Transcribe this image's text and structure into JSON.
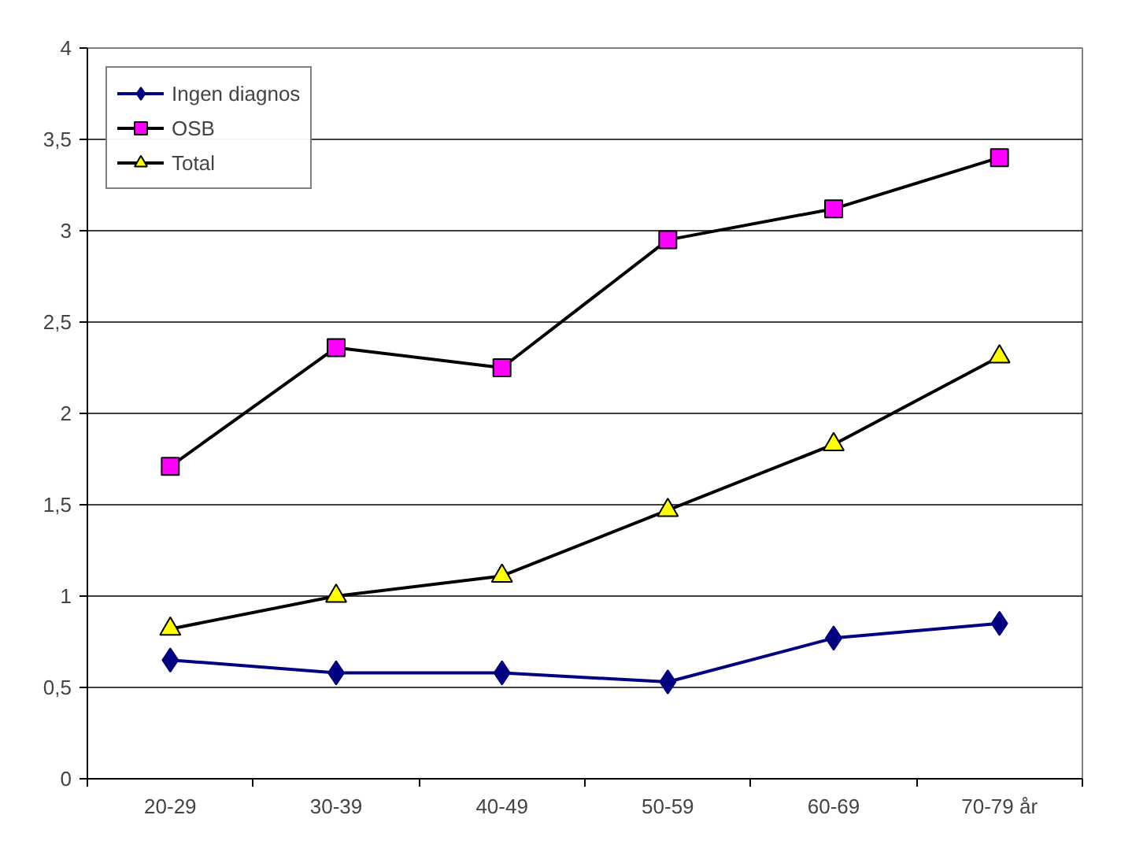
{
  "chart_data": {
    "type": "line",
    "categories": [
      "20-29",
      "30-39",
      "40-49",
      "50-59",
      "60-69",
      "70-79 år"
    ],
    "series": [
      {
        "name": "Ingen diagnos",
        "color": "#000080",
        "marker": "diamond",
        "values": [
          0.65,
          0.58,
          0.58,
          0.53,
          0.77,
          0.85
        ]
      },
      {
        "name": "OSB",
        "color": "#ff00ff",
        "marker": "square",
        "values": [
          1.71,
          2.36,
          2.25,
          2.95,
          3.12,
          3.4
        ]
      },
      {
        "name": "Total",
        "color": "#ffff00",
        "marker": "triangle",
        "values": [
          0.82,
          1.0,
          1.11,
          1.47,
          1.83,
          2.31
        ]
      }
    ],
    "ylim": [
      0,
      4
    ],
    "yticks": [
      0,
      {
        "value": 0.5,
        "label": "0,5"
      },
      1,
      {
        "value": 1.5,
        "label": "1,5"
      },
      2,
      {
        "value": 2.5,
        "label": "2,5"
      },
      3,
      {
        "value": 3.5,
        "label": "3,5"
      },
      4
    ],
    "grid": "y",
    "legend": "top left",
    "line_style": "solid"
  }
}
